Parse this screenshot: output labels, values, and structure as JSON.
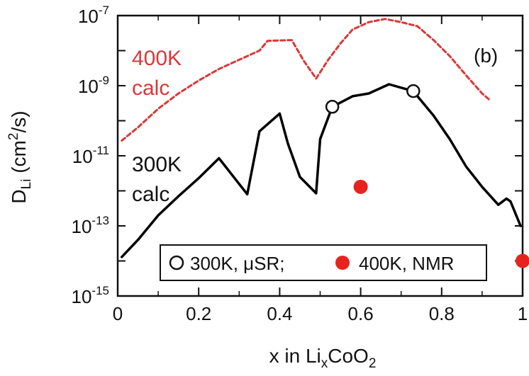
{
  "chart_data": {
    "type": "line",
    "panel_label": "(b)",
    "xlabel": {
      "main": "x in Li",
      "sub1": "x",
      "mid": "CoO",
      "sub2": "2"
    },
    "ylabel": {
      "main": "D",
      "sub": "Li",
      "unit_pre": " (cm",
      "unit_sup": "2",
      "unit_post": "/s)"
    },
    "xlim": [
      0,
      1
    ],
    "ylim_log10": [
      -15,
      -7
    ],
    "y_scale": "log",
    "x_ticks": [
      {
        "value": 0,
        "label": "0"
      },
      {
        "value": 0.2,
        "label": "0.2"
      },
      {
        "value": 0.4,
        "label": "0.4"
      },
      {
        "value": 0.6,
        "label": "0.6"
      },
      {
        "value": 0.8,
        "label": "0.8"
      },
      {
        "value": 1,
        "label": "1"
      }
    ],
    "y_ticks": [
      {
        "exp": -7,
        "base": "10",
        "sup": "-7"
      },
      {
        "exp": -9,
        "base": "10",
        "sup": "-9"
      },
      {
        "exp": -11,
        "base": "10",
        "sup": "-11"
      },
      {
        "exp": -13,
        "base": "10",
        "sup": "-13"
      },
      {
        "exp": -15,
        "base": "10",
        "sup": "-15"
      }
    ],
    "grid": false,
    "colors": {
      "calc_400K": "#d9383a",
      "calc_300K": "#000000",
      "nmr": "#e8231d",
      "musr": "#000000"
    },
    "series": [
      {
        "name": "400K calc",
        "label_lines": [
          "400K",
          "calc"
        ],
        "style": "dashed",
        "color": "#d9383a",
        "points": [
          {
            "x": 0.01,
            "y": 2.7e-11
          },
          {
            "x": 0.05,
            "y": 6.5e-11
          },
          {
            "x": 0.1,
            "y": 2.2e-10
          },
          {
            "x": 0.15,
            "y": 6e-10
          },
          {
            "x": 0.2,
            "y": 1.4e-09
          },
          {
            "x": 0.25,
            "y": 3e-09
          },
          {
            "x": 0.3,
            "y": 5.5e-09
          },
          {
            "x": 0.35,
            "y": 1e-08
          },
          {
            "x": 0.37,
            "y": 1.9e-08
          },
          {
            "x": 0.43,
            "y": 2e-08
          },
          {
            "x": 0.46,
            "y": 5e-09
          },
          {
            "x": 0.49,
            "y": 1.6e-09
          },
          {
            "x": 0.52,
            "y": 5.5e-09
          },
          {
            "x": 0.55,
            "y": 1.6e-08
          },
          {
            "x": 0.58,
            "y": 4e-08
          },
          {
            "x": 0.62,
            "y": 6.5e-08
          },
          {
            "x": 0.66,
            "y": 8e-08
          },
          {
            "x": 0.7,
            "y": 6.5e-08
          },
          {
            "x": 0.74,
            "y": 5e-08
          },
          {
            "x": 0.78,
            "y": 2e-08
          },
          {
            "x": 0.82,
            "y": 7e-09
          },
          {
            "x": 0.86,
            "y": 2e-09
          },
          {
            "x": 0.9,
            "y": 6e-10
          },
          {
            "x": 0.92,
            "y": 3.8e-10
          }
        ]
      },
      {
        "name": "300K calc",
        "label_lines": [
          "300K",
          "calc"
        ],
        "style": "solid",
        "color": "#000000",
        "points": [
          {
            "x": 0.01,
            "y": 1.3e-14
          },
          {
            "x": 0.05,
            "y": 4e-14
          },
          {
            "x": 0.1,
            "y": 2e-13
          },
          {
            "x": 0.15,
            "y": 7e-13
          },
          {
            "x": 0.2,
            "y": 2.3e-12
          },
          {
            "x": 0.25,
            "y": 8.5e-12
          },
          {
            "x": 0.29,
            "y": 2.2e-12
          },
          {
            "x": 0.32,
            "y": 8e-13
          },
          {
            "x": 0.35,
            "y": 5e-11
          },
          {
            "x": 0.4,
            "y": 1.6e-10
          },
          {
            "x": 0.42,
            "y": 2.3e-11
          },
          {
            "x": 0.45,
            "y": 2.5e-12
          },
          {
            "x": 0.49,
            "y": 8.5e-13
          },
          {
            "x": 0.5,
            "y": 3e-11
          },
          {
            "x": 0.53,
            "y": 2.5e-10
          },
          {
            "x": 0.58,
            "y": 5e-10
          },
          {
            "x": 0.62,
            "y": 6e-10
          },
          {
            "x": 0.67,
            "y": 1.1e-09
          },
          {
            "x": 0.73,
            "y": 7e-10
          },
          {
            "x": 0.78,
            "y": 1.4e-10
          },
          {
            "x": 0.82,
            "y": 3e-11
          },
          {
            "x": 0.86,
            "y": 5e-12
          },
          {
            "x": 0.9,
            "y": 1.3e-12
          },
          {
            "x": 0.94,
            "y": 4e-13
          },
          {
            "x": 0.96,
            "y": 6e-13
          },
          {
            "x": 0.97,
            "y": 5e-13
          },
          {
            "x": 0.995,
            "y": 1e-13
          }
        ]
      }
    ],
    "markers": [
      {
        "series": "300K, μSR",
        "type": "open-circle",
        "points": [
          {
            "x": 0.53,
            "y": 2.5e-10
          },
          {
            "x": 0.73,
            "y": 7e-10
          }
        ]
      },
      {
        "series": "400K, NMR",
        "type": "filled-circle",
        "points": [
          {
            "x": 0.6,
            "y": 1.3e-12
          },
          {
            "x": 1.0,
            "y": 1e-14
          }
        ]
      }
    ],
    "legend": {
      "placement": "bottom-right",
      "entries": [
        {
          "marker": "open-circle",
          "text": "300K, μSR;"
        },
        {
          "marker": "filled-circle",
          "text": "400K, NMR"
        }
      ]
    }
  }
}
